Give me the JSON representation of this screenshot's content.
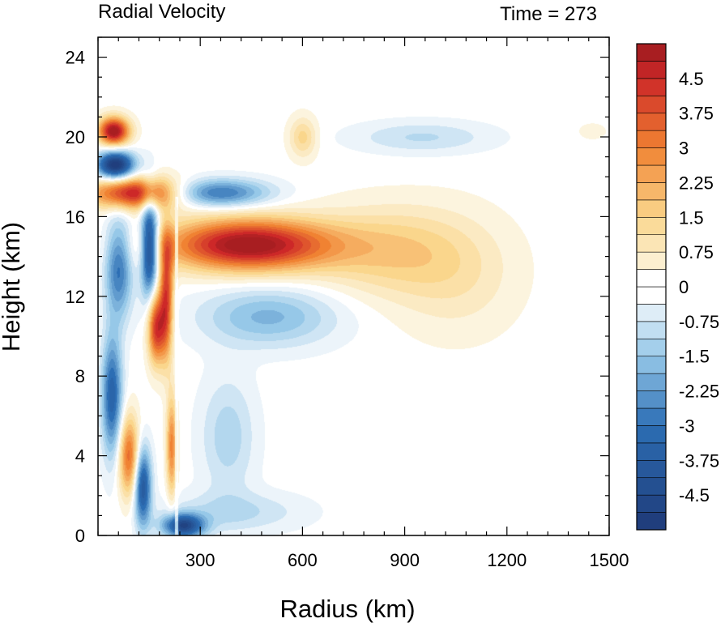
{
  "chart_data": {
    "type": "heatmap",
    "title": "Radial Velocity",
    "time_label": "Time = 273",
    "xlabel": "Radius (km)",
    "ylabel": "Height (km)",
    "xlim": [
      0,
      1500
    ],
    "ylim": [
      0,
      25
    ],
    "x_ticks": [
      300,
      600,
      900,
      1200,
      1500
    ],
    "y_ticks": [
      0,
      4,
      8,
      12,
      16,
      20,
      24
    ],
    "colorbar": {
      "min": -5.25,
      "max": 5.25,
      "step": 0.375,
      "labels": [
        "4.5",
        "3.75",
        "3",
        "2.25",
        "1.5",
        "0.75",
        "0",
        "-0.75",
        "-1.5",
        "-2.25",
        "-3",
        "-3.75",
        "-4.5"
      ],
      "label_values": [
        4.5,
        3.75,
        3,
        2.25,
        1.5,
        0.75,
        0,
        -0.75,
        -1.5,
        -2.25,
        -3,
        -3.75,
        -4.5
      ],
      "negative_color": "#1f3a78",
      "neutral_color": "#ffffff",
      "positive_color": "#9b1a1f"
    },
    "features": [
      {
        "r_center": 45,
        "z_center": 20.3,
        "r_width": 45,
        "z_width": 0.7,
        "value": 5.5
      },
      {
        "r_center": 50,
        "z_center": 18.6,
        "r_width": 55,
        "z_width": 0.7,
        "value": -5.5
      },
      {
        "r_center": 110,
        "z_center": 17.2,
        "r_width": 130,
        "z_width": 0.8,
        "value": 5.0
      },
      {
        "r_center": 440,
        "z_center": 14.6,
        "r_width": 240,
        "z_width": 1.3,
        "value": 5.5
      },
      {
        "r_center": 850,
        "z_center": 14.3,
        "r_width": 220,
        "z_width": 2.2,
        "value": 1.5
      },
      {
        "r_center": 1050,
        "z_center": 13.0,
        "r_width": 180,
        "z_width": 3.0,
        "value": 0.8
      },
      {
        "r_center": 350,
        "z_center": 17.2,
        "r_width": 150,
        "z_width": 0.7,
        "value": -3.0
      },
      {
        "r_center": 500,
        "z_center": 11.0,
        "r_width": 200,
        "z_width": 1.5,
        "value": -1.8
      },
      {
        "r_center": 950,
        "z_center": 20.0,
        "r_width": 200,
        "z_width": 0.8,
        "value": -1.0
      },
      {
        "r_center": 60,
        "z_center": 13.5,
        "r_width": 40,
        "z_width": 2.5,
        "value": -3.0
      },
      {
        "r_center": 170,
        "z_center": 10.5,
        "r_width": 25,
        "z_width": 1.8,
        "value": 4.5
      },
      {
        "r_center": 150,
        "z_center": 14.5,
        "r_width": 25,
        "z_width": 2.5,
        "value": -5.0
      },
      {
        "r_center": 200,
        "z_center": 12.0,
        "r_width": 20,
        "z_width": 3.0,
        "value": 4.0
      },
      {
        "r_center": 40,
        "z_center": 7.0,
        "r_width": 30,
        "z_width": 3.0,
        "value": -3.5
      },
      {
        "r_center": 90,
        "z_center": 4.0,
        "r_width": 30,
        "z_width": 2.0,
        "value": 3.5
      },
      {
        "r_center": 130,
        "z_center": 2.5,
        "r_width": 25,
        "z_width": 2.0,
        "value": -4.0
      },
      {
        "r_center": 215,
        "z_center": 4.5,
        "r_width": 15,
        "z_width": 2.5,
        "value": 3.0
      },
      {
        "r_center": 250,
        "z_center": 0.5,
        "r_width": 60,
        "z_width": 0.6,
        "value": -4.5
      },
      {
        "r_center": 400,
        "z_center": 1.2,
        "r_width": 200,
        "z_width": 1.0,
        "value": -1.0
      },
      {
        "r_center": 380,
        "z_center": 5.0,
        "r_width": 80,
        "z_width": 3.0,
        "value": -1.2
      },
      {
        "r_center": 1450,
        "z_center": 20.3,
        "r_width": 40,
        "z_width": 0.4,
        "value": 0.5
      },
      {
        "r_center": 600,
        "z_center": 20.0,
        "r_width": 40,
        "z_width": 1.0,
        "value": 1.5
      }
    ]
  }
}
